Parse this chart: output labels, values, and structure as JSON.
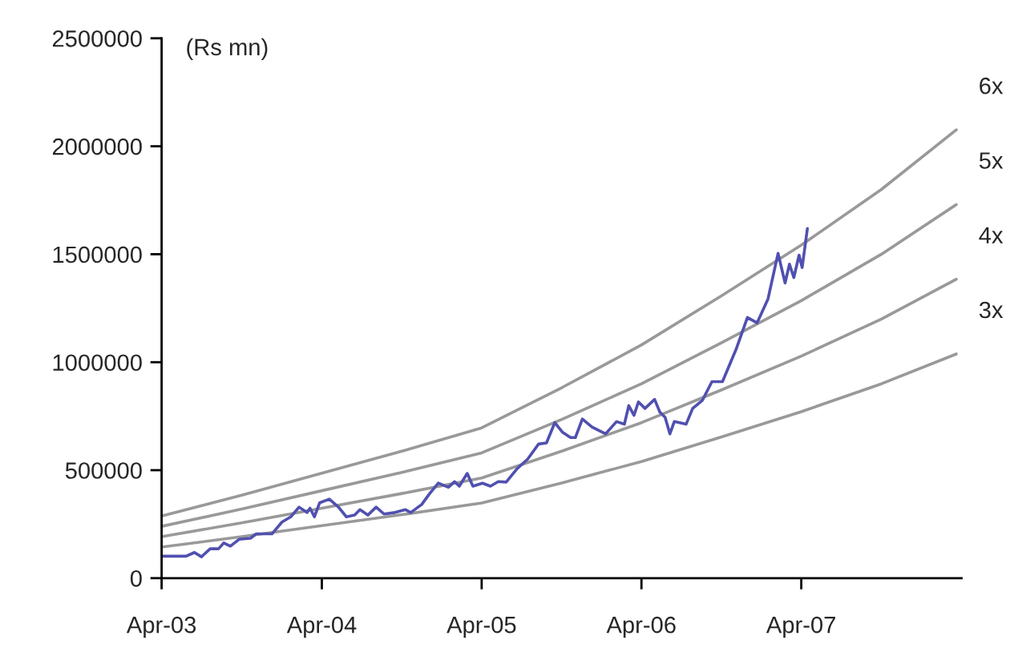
{
  "chart_data": {
    "type": "line",
    "ylabel": "(Rs mn)",
    "ylim": [
      0,
      2500000
    ],
    "yticks": [
      0,
      500000,
      1000000,
      1500000,
      2000000,
      2500000
    ],
    "xlim": [
      "2003-04-01",
      "2008-04-01"
    ],
    "xticks": [
      {
        "value": "2003-04-01",
        "label": "Apr-03"
      },
      {
        "value": "2004-04-01",
        "label": "Apr-04"
      },
      {
        "value": "2005-04-01",
        "label": "Apr-05"
      },
      {
        "value": "2006-04-01",
        "label": "Apr-06"
      },
      {
        "value": "2007-04-01",
        "label": "Apr-07"
      }
    ],
    "grid": false,
    "legend": false,
    "marker": "none",
    "line_style": "solid",
    "series": [
      {
        "name": "6x",
        "color": "#999999",
        "x": [
          "2003-04-01",
          "2003-10-01",
          "2004-04-01",
          "2004-10-01",
          "2005-04-01",
          "2005-10-01",
          "2006-04-01",
          "2006-10-01",
          "2007-04-01",
          "2007-10-01",
          "2008-03-20"
        ],
        "values": [
          288000,
          384000,
          486000,
          588000,
          696000,
          882000,
          1080000,
          1308000,
          1542000,
          1800000,
          2076000
        ]
      },
      {
        "name": "5x",
        "color": "#999999",
        "x": [
          "2003-04-01",
          "2003-10-01",
          "2004-04-01",
          "2004-10-01",
          "2005-04-01",
          "2005-10-01",
          "2006-04-01",
          "2006-10-01",
          "2007-04-01",
          "2007-10-01",
          "2008-03-20"
        ],
        "values": [
          240000,
          320000,
          405000,
          490000,
          580000,
          735000,
          900000,
          1090000,
          1285000,
          1500000,
          1730000
        ]
      },
      {
        "name": "4x",
        "color": "#999999",
        "x": [
          "2003-04-01",
          "2003-10-01",
          "2004-04-01",
          "2004-10-01",
          "2005-04-01",
          "2005-10-01",
          "2006-04-01",
          "2006-10-01",
          "2007-04-01",
          "2007-10-01",
          "2008-03-20"
        ],
        "values": [
          192000,
          256000,
          324000,
          392000,
          464000,
          588000,
          720000,
          872000,
          1028000,
          1200000,
          1384000
        ]
      },
      {
        "name": "3x",
        "color": "#999999",
        "x": [
          "2003-04-01",
          "2003-10-01",
          "2004-04-01",
          "2004-10-01",
          "2005-04-01",
          "2005-10-01",
          "2006-04-01",
          "2006-10-01",
          "2007-04-01",
          "2007-10-01",
          "2008-03-20"
        ],
        "values": [
          144000,
          192000,
          243000,
          294000,
          348000,
          441000,
          540000,
          654000,
          771000,
          900000,
          1038000
        ]
      },
      {
        "color": "#5050b0",
        "x": [
          "2003-04-01",
          "2003-05-27",
          "2003-06-15",
          "2003-07-01",
          "2003-07-21",
          "2003-08-09",
          "2003-08-21",
          "2003-09-05",
          "2003-09-25",
          "2003-10-21",
          "2003-11-03",
          "2003-12-09",
          "2004-01-01",
          "2004-01-21",
          "2004-02-09",
          "2004-02-27",
          "2004-03-05",
          "2004-03-15",
          "2004-03-27",
          "2004-04-18",
          "2004-05-09",
          "2004-05-27",
          "2004-06-15",
          "2004-06-27",
          "2004-07-15",
          "2004-08-03",
          "2004-08-21",
          "2004-09-15",
          "2004-10-09",
          "2004-10-21",
          "2004-11-15",
          "2004-12-03",
          "2004-12-23",
          "2005-01-15",
          "2005-01-29",
          "2005-02-09",
          "2005-02-27",
          "2005-03-12",
          "2005-04-03",
          "2005-04-21",
          "2005-05-09",
          "2005-05-27",
          "2005-06-21",
          "2005-07-15",
          "2005-08-09",
          "2005-08-27",
          "2005-09-15",
          "2005-10-03",
          "2005-10-21",
          "2005-11-01",
          "2005-11-17",
          "2005-12-09",
          "2006-01-09",
          "2006-02-03",
          "2006-02-21",
          "2006-03-03",
          "2006-03-15",
          "2006-03-25",
          "2006-04-09",
          "2006-05-01",
          "2006-05-13",
          "2006-05-25",
          "2006-06-05",
          "2006-06-15",
          "2006-07-12",
          "2006-07-27",
          "2006-08-18",
          "2006-09-09",
          "2006-10-03",
          "2006-11-03",
          "2006-11-29",
          "2006-12-21",
          "2007-01-15",
          "2007-02-07",
          "2007-02-23",
          "2007-03-05",
          "2007-03-15",
          "2007-03-27",
          "2007-04-03",
          "2007-04-15"
        ],
        "values": [
          102000,
          102000,
          119000,
          99000,
          136000,
          136000,
          163000,
          148000,
          180000,
          185000,
          205000,
          205000,
          260000,
          284000,
          329000,
          304000,
          324000,
          284000,
          349000,
          366000,
          329000,
          284000,
          292000,
          317000,
          292000,
          329000,
          297000,
          304000,
          317000,
          304000,
          341000,
          391000,
          440000,
          421000,
          447000,
          426000,
          485000,
          426000,
          440000,
          426000,
          447000,
          445000,
          507000,
          551000,
          621000,
          626000,
          720000,
          675000,
          651000,
          651000,
          737000,
          700000,
          668000,
          725000,
          713000,
          799000,
          754000,
          816000,
          786000,
          828000,
          769000,
          745000,
          668000,
          725000,
          713000,
          786000,
          823000,
          910000,
          910000,
          1059000,
          1207000,
          1182000,
          1293000,
          1504000,
          1367000,
          1454000,
          1392000,
          1496000,
          1438000,
          1619000
        ]
      }
    ]
  }
}
